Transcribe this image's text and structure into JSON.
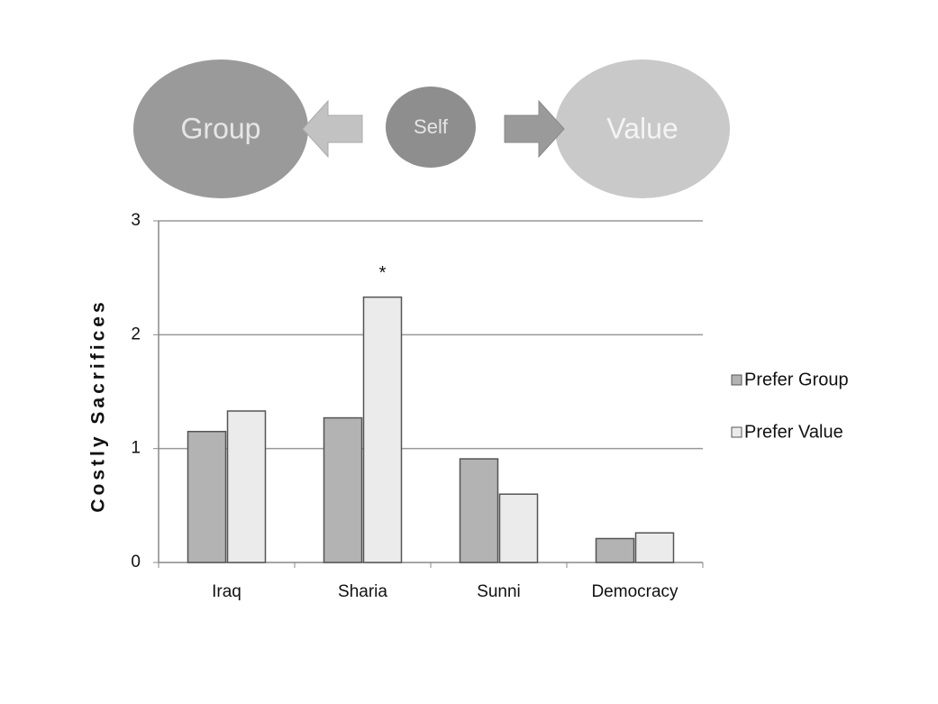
{
  "diagram": {
    "nodes": [
      {
        "label": "Group"
      },
      {
        "label": "Self"
      },
      {
        "label": "Value"
      }
    ]
  },
  "chart_data": {
    "type": "bar",
    "y_label": "Costly Sacrifices",
    "categories": [
      "Iraq",
      "Sharia",
      "Sunni",
      "Democracy"
    ],
    "series": [
      {
        "name": "Prefer Group",
        "color": "#b3b3b3",
        "values": [
          1.15,
          1.27,
          0.91,
          0.21
        ]
      },
      {
        "name": "Prefer Value",
        "color": "#ebebeb",
        "values": [
          1.33,
          2.33,
          0.6,
          0.26
        ]
      }
    ],
    "annotations": [
      "*"
    ],
    "ylim": [
      0,
      3
    ],
    "yticks": [
      0,
      1,
      2,
      3
    ],
    "grid": true,
    "legend": "right"
  }
}
